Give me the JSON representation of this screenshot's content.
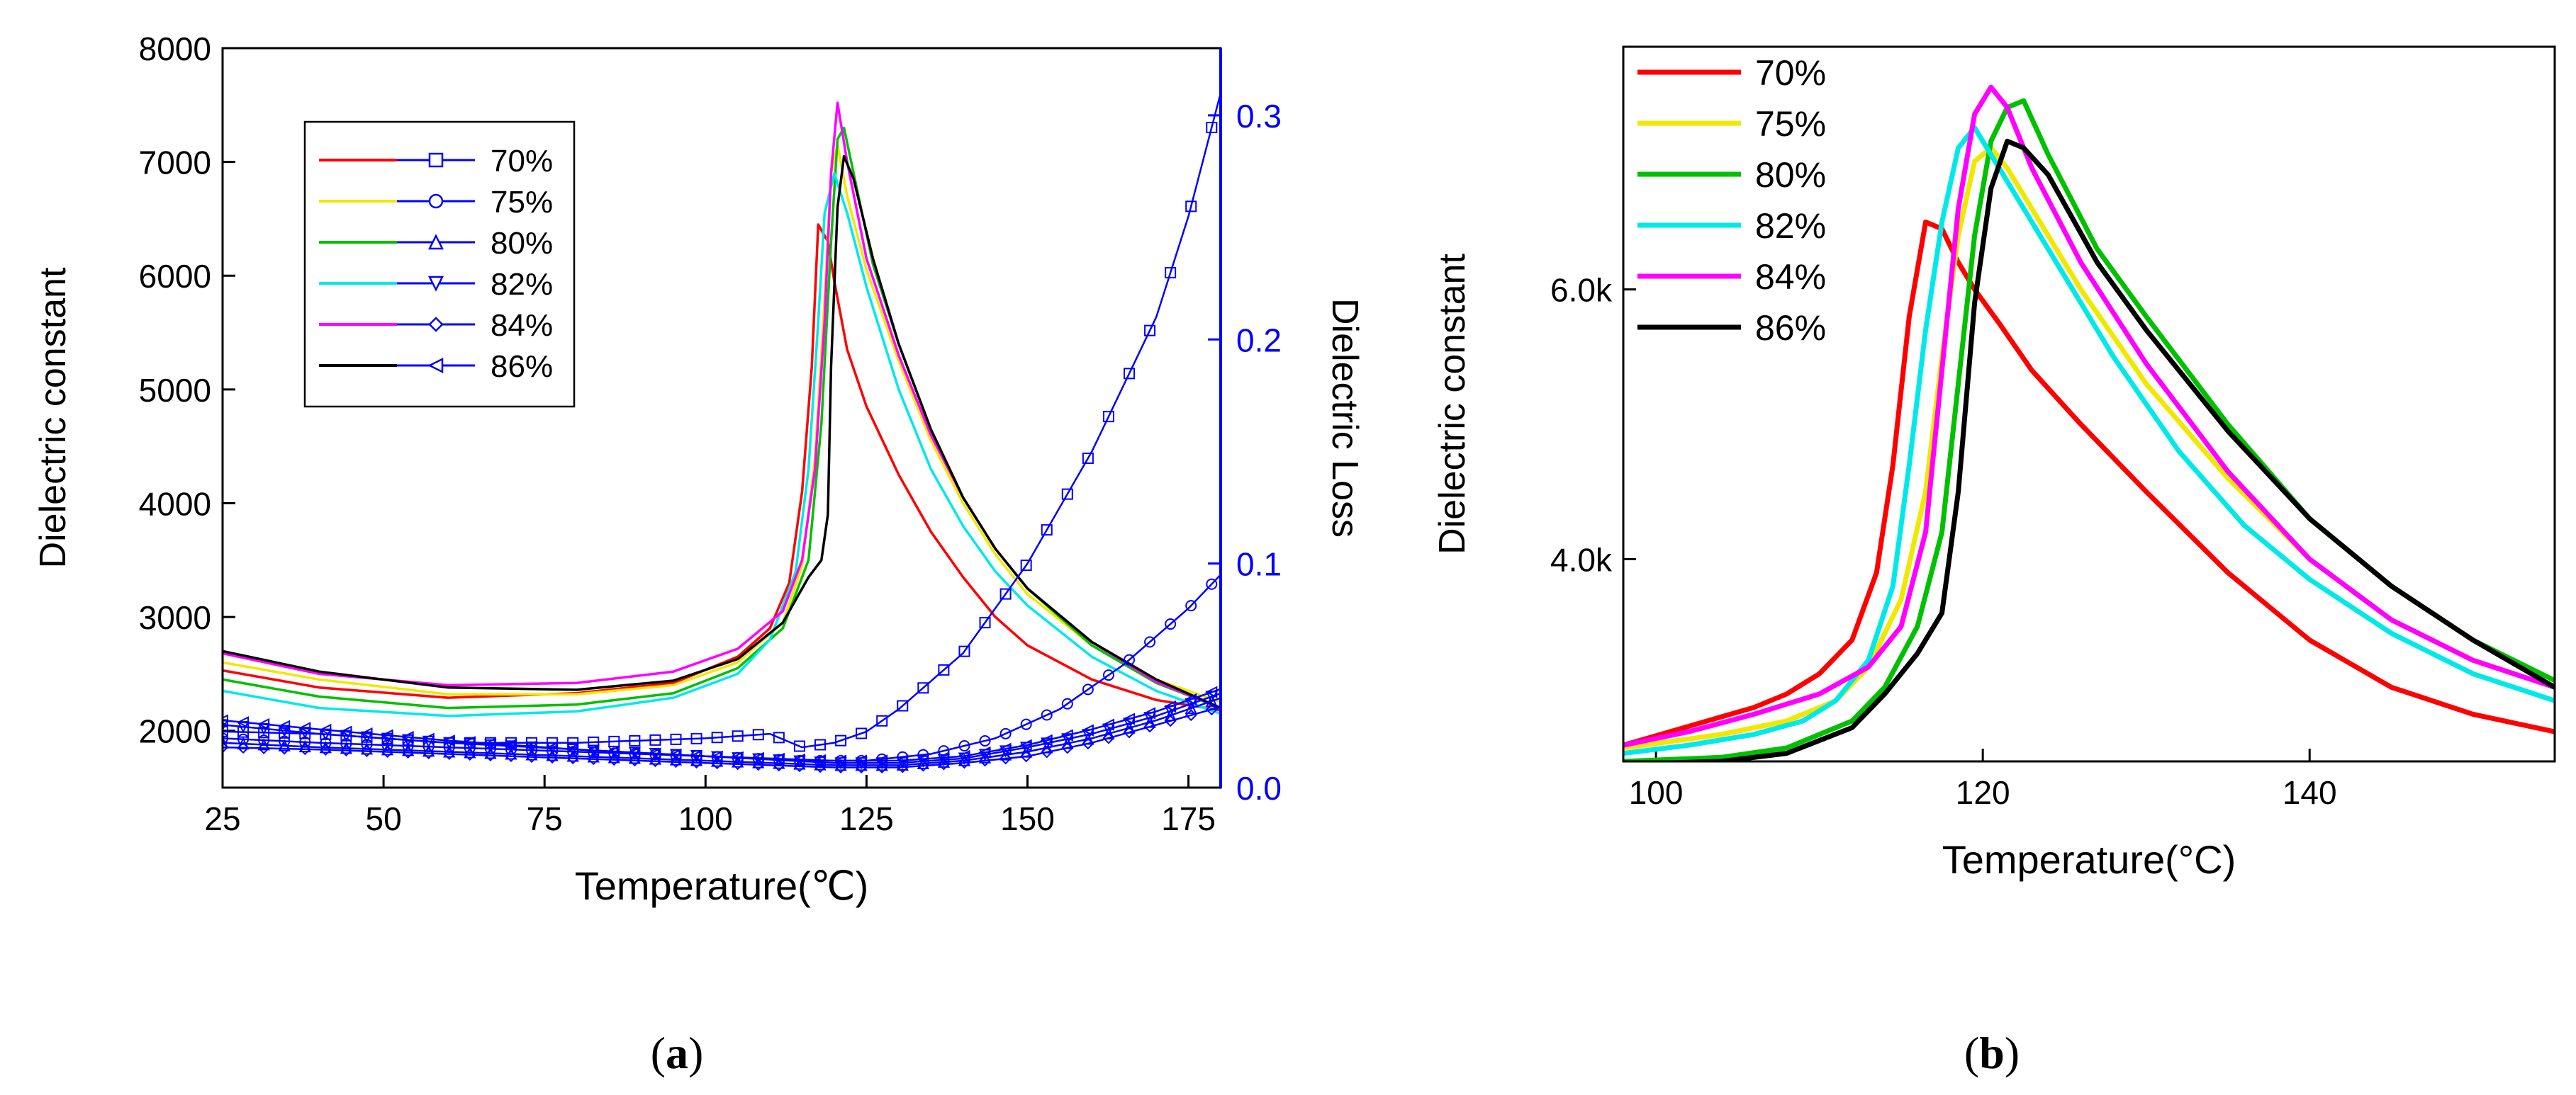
{
  "figure": {
    "panels": [
      {
        "id": "a",
        "label": "a",
        "chart_type": "line",
        "x_label": "Temperature(℃)",
        "x_range": [
          25,
          180
        ],
        "x_ticks": [
          25,
          50,
          75,
          100,
          125,
          150,
          175
        ],
        "x_tick_labels": [
          "25",
          "50",
          "75",
          "100",
          "125",
          "150",
          "175"
        ],
        "y_label": "Dielectric constant",
        "y_range": [
          1500,
          8000
        ],
        "y_ticks": [
          2000,
          3000,
          4000,
          5000,
          6000,
          7000,
          8000
        ],
        "y_tick_labels": [
          "2000",
          "3000",
          "4000",
          "5000",
          "6000",
          "7000",
          "8000"
        ],
        "y2_label": "Dielectric Loss",
        "y2_range": [
          0.0,
          0.33
        ],
        "y2_ticks": [
          0.0,
          0.1,
          0.2,
          0.3
        ],
        "y2_tick_labels": [
          "0.0",
          "0.1",
          "0.2",
          "0.3"
        ],
        "legend": [
          "70%",
          "75%",
          "80%",
          "82%",
          "84%",
          "86%"
        ]
      },
      {
        "id": "b",
        "label": "b",
        "chart_type": "line",
        "x_label": "Temperature(°C)",
        "x_range": [
          98,
          155
        ],
        "x_ticks": [
          100,
          120,
          140
        ],
        "x_tick_labels": [
          "100",
          "120",
          "140"
        ],
        "y_label": "Dielectric constant",
        "y_range": [
          2500,
          7800
        ],
        "y_ticks": [
          4000,
          6000
        ],
        "y_tick_labels": [
          "4.0k",
          "6.0k"
        ],
        "legend": [
          "70%",
          "75%",
          "80%",
          "82%",
          "84%",
          "86%"
        ]
      }
    ]
  },
  "chart_data": [
    {
      "panel": "a",
      "type": "line",
      "xlabel": "Temperature(℃)",
      "ylabel": "Dielectric constant",
      "y2label": "Dielectric Loss",
      "xlim": [
        25,
        180
      ],
      "ylim": [
        1500,
        8000
      ],
      "y2lim": [
        0.0,
        0.33
      ],
      "series": [
        {
          "name": "70%",
          "color": "#ff0000",
          "axis": "left",
          "x": [
            25,
            40,
            60,
            80,
            95,
            105,
            110,
            113,
            115,
            116.5,
            117.5,
            119,
            120,
            122,
            125,
            130,
            135,
            140,
            145,
            150,
            160,
            170,
            180
          ],
          "y": [
            2530,
            2380,
            2290,
            2330,
            2420,
            2650,
            2900,
            3300,
            4100,
            5200,
            6450,
            6300,
            5950,
            5350,
            4850,
            4250,
            3750,
            3350,
            3000,
            2750,
            2450,
            2270,
            2180
          ]
        },
        {
          "name": "75%",
          "color": "#f0e800",
          "axis": "left",
          "x": [
            25,
            40,
            60,
            80,
            95,
            105,
            112,
            115,
            117,
            118.5,
            119.5,
            120.5,
            122,
            125,
            130,
            135,
            140,
            145,
            150,
            160,
            170,
            180
          ],
          "y": [
            2600,
            2450,
            2320,
            2320,
            2400,
            2600,
            2950,
            3450,
            4400,
            5800,
            6900,
            7150,
            6700,
            6050,
            5250,
            4550,
            4000,
            3550,
            3200,
            2750,
            2450,
            2250
          ]
        },
        {
          "name": "80%",
          "color": "#00c000",
          "axis": "left",
          "x": [
            25,
            40,
            60,
            80,
            95,
            105,
            112,
            116,
            118,
            119.5,
            120.5,
            121.5,
            123,
            126,
            130,
            135,
            140,
            145,
            150,
            160,
            170,
            180
          ],
          "y": [
            2450,
            2300,
            2200,
            2230,
            2330,
            2550,
            2900,
            3500,
            4700,
            6300,
            7200,
            7300,
            6900,
            6100,
            5400,
            4650,
            4050,
            3600,
            3250,
            2750,
            2420,
            2200
          ]
        },
        {
          "name": "82%",
          "color": "#00e8e8",
          "axis": "left",
          "x": [
            25,
            40,
            60,
            80,
            95,
            105,
            110,
            114,
            116,
            117.5,
            118.5,
            120,
            122,
            125,
            130,
            135,
            140,
            145,
            150,
            160,
            170,
            180
          ],
          "y": [
            2350,
            2200,
            2130,
            2170,
            2290,
            2500,
            2800,
            3400,
            4300,
            5600,
            6550,
            6900,
            6550,
            5900,
            5000,
            4300,
            3800,
            3400,
            3100,
            2650,
            2350,
            2150
          ]
        },
        {
          "name": "84%",
          "color": "#ff00ff",
          "axis": "left",
          "x": [
            25,
            40,
            60,
            80,
            95,
            105,
            112,
            115,
            117,
            118.5,
            119.5,
            120.5,
            122,
            125,
            130,
            135,
            140,
            145,
            150,
            160,
            170,
            180
          ],
          "y": [
            2680,
            2500,
            2400,
            2420,
            2520,
            2720,
            3050,
            3500,
            4300,
            5600,
            6900,
            7520,
            7000,
            6150,
            5300,
            4600,
            4050,
            3600,
            3250,
            2780,
            2430,
            2200
          ]
        },
        {
          "name": "86%",
          "color": "#000000",
          "axis": "left",
          "x": [
            25,
            40,
            60,
            80,
            95,
            105,
            112,
            116,
            118,
            119,
            119.5,
            120.5,
            121.5,
            123,
            126,
            130,
            135,
            140,
            145,
            150,
            160,
            170,
            180
          ],
          "y": [
            2700,
            2520,
            2380,
            2360,
            2440,
            2630,
            2950,
            3350,
            3500,
            3900,
            5200,
            6600,
            7050,
            6850,
            6150,
            5400,
            4650,
            4050,
            3600,
            3250,
            2780,
            2450,
            2200
          ]
        },
        {
          "name": "70% loss",
          "color": "#0000ff",
          "marker": "square",
          "axis": "right",
          "x": [
            25,
            40,
            60,
            80,
            100,
            110,
            115,
            120,
            125,
            130,
            140,
            150,
            160,
            170,
            175,
            180
          ],
          "y": [
            0.025,
            0.024,
            0.02,
            0.02,
            0.022,
            0.024,
            0.018,
            0.02,
            0.025,
            0.035,
            0.06,
            0.1,
            0.15,
            0.21,
            0.255,
            0.31
          ]
        },
        {
          "name": "75% loss",
          "color": "#0000ff",
          "marker": "circle",
          "axis": "right",
          "x": [
            25,
            40,
            60,
            80,
            100,
            115,
            125,
            135,
            145,
            155,
            165,
            175,
            180
          ],
          "y": [
            0.022,
            0.02,
            0.018,
            0.016,
            0.014,
            0.012,
            0.012,
            0.015,
            0.022,
            0.035,
            0.055,
            0.08,
            0.095
          ]
        },
        {
          "name": "80% loss",
          "color": "#0000ff",
          "marker": "triangle-up",
          "axis": "right",
          "x": [
            25,
            40,
            60,
            80,
            100,
            120,
            130,
            140,
            150,
            160,
            170,
            180
          ],
          "y": [
            0.02,
            0.018,
            0.016,
            0.014,
            0.012,
            0.01,
            0.01,
            0.012,
            0.016,
            0.022,
            0.03,
            0.04
          ]
        },
        {
          "name": "82% loss",
          "color": "#0000ff",
          "marker": "triangle-down",
          "axis": "right",
          "x": [
            25,
            40,
            60,
            80,
            100,
            120,
            130,
            140,
            150,
            160,
            170,
            180
          ],
          "y": [
            0.028,
            0.024,
            0.02,
            0.017,
            0.014,
            0.011,
            0.011,
            0.013,
            0.018,
            0.024,
            0.032,
            0.042
          ]
        },
        {
          "name": "84% loss",
          "color": "#0000ff",
          "marker": "diamond",
          "axis": "right",
          "x": [
            25,
            40,
            60,
            80,
            100,
            120,
            130,
            140,
            150,
            160,
            170,
            180
          ],
          "y": [
            0.018,
            0.017,
            0.015,
            0.013,
            0.011,
            0.009,
            0.009,
            0.011,
            0.014,
            0.02,
            0.028,
            0.036
          ]
        },
        {
          "name": "86% loss",
          "color": "#0000ff",
          "marker": "tri-left",
          "axis": "right",
          "x": [
            25,
            40,
            60,
            80,
            100,
            120,
            130,
            140,
            150,
            160,
            170,
            180
          ],
          "y": [
            0.03,
            0.026,
            0.021,
            0.017,
            0.014,
            0.012,
            0.012,
            0.014,
            0.019,
            0.026,
            0.034,
            0.044
          ]
        }
      ]
    },
    {
      "panel": "b",
      "type": "line",
      "xlabel": "Temperature(°C)",
      "ylabel": "Dielectric constant",
      "xlim": [
        98,
        155
      ],
      "ylim": [
        2500,
        7800
      ],
      "series": [
        {
          "name": "70%",
          "color": "#ff0000",
          "x": [
            98,
            102,
            106,
            108,
            110,
            112,
            113.5,
            114.5,
            115.5,
            116.5,
            117.5,
            118.5,
            119.5,
            121,
            123,
            126,
            130,
            135,
            140,
            145,
            150,
            155
          ],
          "y": [
            2620,
            2760,
            2900,
            3000,
            3150,
            3400,
            3900,
            4700,
            5800,
            6500,
            6450,
            6200,
            6000,
            5750,
            5400,
            5000,
            4500,
            3900,
            3400,
            3050,
            2850,
            2720
          ]
        },
        {
          "name": "75%",
          "color": "#f0e800",
          "x": [
            98,
            104,
            108,
            111,
            113,
            115,
            116.5,
            117.5,
            118.5,
            119.5,
            120.5,
            121.5,
            123,
            126,
            130,
            135,
            140,
            145,
            150,
            155
          ],
          "y": [
            2600,
            2700,
            2800,
            2950,
            3200,
            3700,
            4500,
            5500,
            6400,
            6950,
            7050,
            6900,
            6600,
            6000,
            5300,
            4600,
            4000,
            3550,
            3250,
            3050
          ]
        },
        {
          "name": "80%",
          "color": "#00c000",
          "x": [
            98,
            104,
            108,
            112,
            114,
            116,
            117.5,
            118.5,
            119.5,
            120.5,
            121.5,
            122.5,
            124,
            127,
            130,
            135,
            140,
            145,
            150,
            155
          ],
          "y": [
            2500,
            2530,
            2600,
            2800,
            3050,
            3500,
            4200,
            5300,
            6400,
            7100,
            7350,
            7400,
            7000,
            6300,
            5800,
            5000,
            4300,
            3800,
            3400,
            3100
          ]
        },
        {
          "name": "82%",
          "color": "#00e8e8",
          "x": [
            98,
            102,
            106,
            109,
            111,
            113,
            114.5,
            115.5,
            116.5,
            117.5,
            118.5,
            119.5,
            121,
            124,
            128,
            132,
            136,
            140,
            145,
            150,
            155
          ],
          "y": [
            2560,
            2620,
            2700,
            2800,
            2950,
            3250,
            3800,
            4700,
            5700,
            6500,
            7050,
            7200,
            6900,
            6300,
            5500,
            4800,
            4250,
            3850,
            3450,
            3150,
            2950
          ]
        },
        {
          "name": "84%",
          "color": "#ff00ff",
          "x": [
            98,
            102,
            106,
            110,
            113,
            115,
            116.5,
            117.5,
            118.5,
            119.5,
            120.5,
            121.5,
            123,
            126,
            130,
            135,
            140,
            145,
            150,
            155
          ],
          "y": [
            2620,
            2720,
            2850,
            3000,
            3200,
            3500,
            4200,
            5400,
            6600,
            7300,
            7500,
            7350,
            6900,
            6200,
            5450,
            4650,
            4000,
            3550,
            3250,
            3050
          ]
        },
        {
          "name": "86%",
          "color": "#000000",
          "x": [
            98,
            104,
            108,
            112,
            114,
            116,
            117.5,
            118.5,
            119.5,
            120.5,
            121.5,
            122.5,
            124,
            127,
            130,
            135,
            140,
            145,
            150,
            155
          ],
          "y": [
            2480,
            2500,
            2560,
            2750,
            3000,
            3300,
            3600,
            4500,
            5900,
            6750,
            7100,
            7050,
            6850,
            6200,
            5700,
            4950,
            4300,
            3800,
            3400,
            3050
          ]
        }
      ]
    }
  ]
}
